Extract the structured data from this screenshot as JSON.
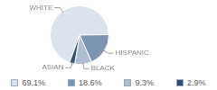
{
  "chart_data": {
    "type": "pie",
    "categories": [
      "WHITE",
      "HISPANIC",
      "BLACK",
      "ASIAN"
    ],
    "values": [
      69.1,
      18.6,
      9.3,
      2.9
    ],
    "value_labels": [
      "69.1%",
      "18.6%",
      "9.3%",
      "2.9%"
    ],
    "colors": [
      "#dde3ec",
      "#7b94b2",
      "#aebdcf",
      "#2c5177"
    ],
    "legend": "bottom"
  }
}
